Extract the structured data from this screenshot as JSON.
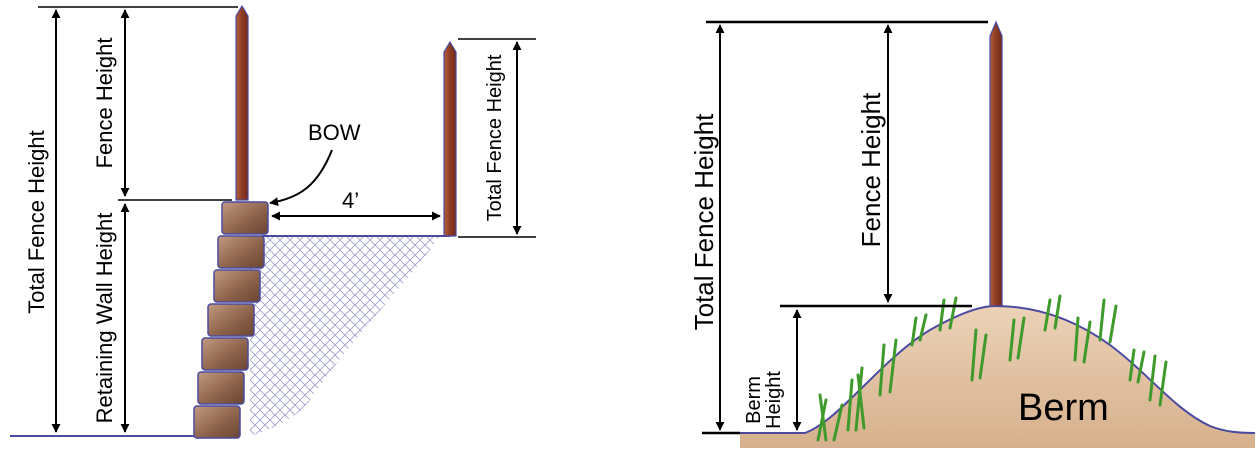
{
  "left_diagram": {
    "total_fence_height_label": "Total Fence Height",
    "fence_height_label": "Fence Height",
    "retaining_wall_height_label": "Retaining Wall Height",
    "bow_label": "BOW",
    "distance_label": "4’",
    "right_total_fence_height_label": "Total Fence Height"
  },
  "right_diagram": {
    "total_fence_height_label": "Total Fence Height",
    "fence_height_label": "Fence Height",
    "berm_height_label_line1": "Berm",
    "berm_height_label_line2": "Height",
    "berm_label": "Berm"
  },
  "colors": {
    "post": "#8f3b24",
    "post_highlight": "#c06a4a",
    "stone": "#8a6048",
    "stone_light": "#b88c72",
    "outline": "#4a4aa0",
    "berm_fill": "#e2c4a6",
    "grass": "#3f9a2c"
  }
}
